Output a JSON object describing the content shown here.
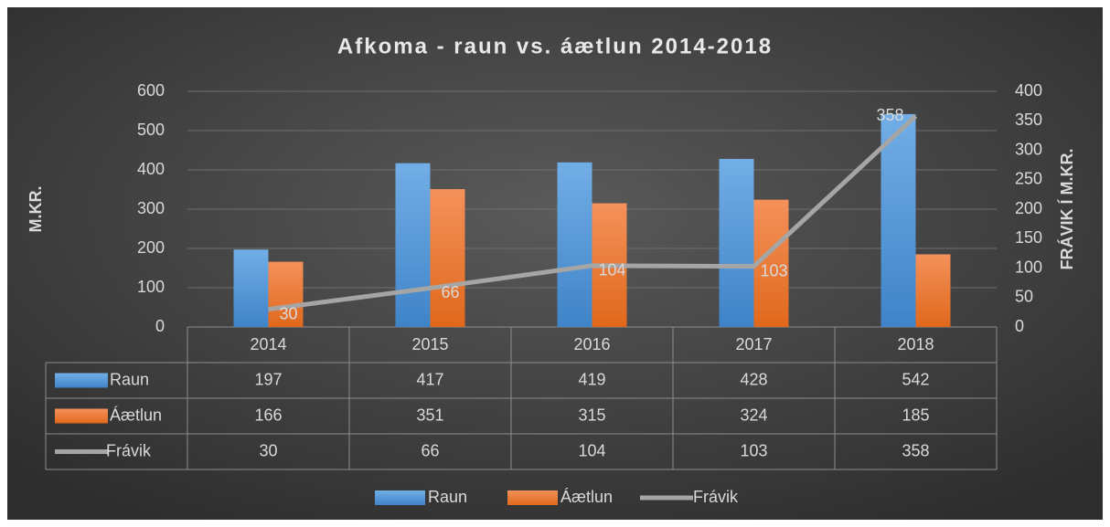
{
  "chart_data": {
    "type": "bar",
    "title": "Afkoma - raun vs. áætlun 2014-2018",
    "ylabel": "M.KR.",
    "y2label": "FRÁVIK Í M.KR.",
    "categories": [
      "2014",
      "2015",
      "2016",
      "2017",
      "2018"
    ],
    "series": [
      {
        "name": "Raun",
        "color": "#5b9bd5",
        "values": [
          197,
          417,
          419,
          428,
          542
        ]
      },
      {
        "name": "Áætlun",
        "color": "#ed7d31",
        "values": [
          166,
          351,
          315,
          324,
          185
        ]
      },
      {
        "name": "Frávik",
        "color": "#a5a5a5",
        "type": "line",
        "axis": "y2",
        "values": [
          30,
          66,
          104,
          103,
          358
        ]
      }
    ],
    "ylim": [
      0,
      600
    ],
    "yticks": [
      0,
      100,
      200,
      300,
      400,
      500,
      600
    ],
    "y2lim": [
      0,
      400
    ],
    "y2ticks": [
      0,
      50,
      100,
      150,
      200,
      250,
      300,
      350,
      400
    ],
    "grid": true,
    "legend": "bottom"
  }
}
